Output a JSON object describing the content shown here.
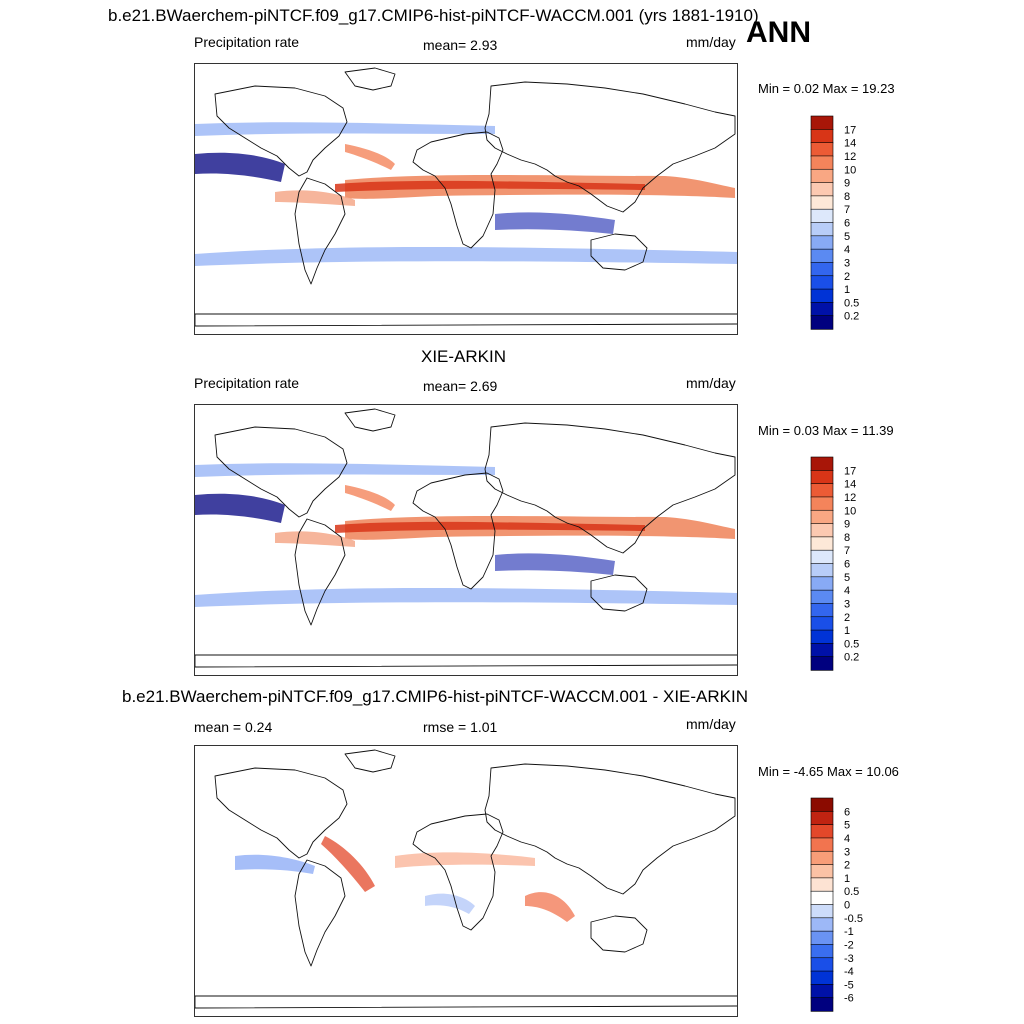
{
  "ann_label": "ANN",
  "panels": [
    {
      "id": "model",
      "title": "b.e21.BWaerchem-piNTCF.f09_g17.CMIP6-hist-piNTCF-WACCM.001 (yrs 1881-1910)",
      "left_label": "Precipitation rate",
      "center_label": "mean=   2.93",
      "units": "mm/day",
      "minmax": "Min =   0.02 Max =  19.23",
      "colorbar": [
        "17",
        "14",
        "12",
        "10",
        "9",
        "8",
        "7",
        "6",
        "5",
        "4",
        "3",
        "2",
        "1",
        "0.5",
        "0.2"
      ]
    },
    {
      "id": "obs",
      "title": "XIE-ARKIN",
      "left_label": "Precipitation rate",
      "center_label": "mean=   2.69",
      "units": "mm/day",
      "minmax": "Min =   0.03 Max =  11.39",
      "colorbar": [
        "17",
        "14",
        "12",
        "10",
        "9",
        "8",
        "7",
        "6",
        "5",
        "4",
        "3",
        "2",
        "1",
        "0.5",
        "0.2"
      ]
    },
    {
      "id": "diff",
      "title": "b.e21.BWaerchem-piNTCF.f09_g17.CMIP6-hist-piNTCF-WACCM.001 - XIE-ARKIN",
      "left_label": "mean =   0.24",
      "center_label": "rmse =   1.01",
      "units": "mm/day",
      "minmax": "Min =  -4.65 Max =  10.06",
      "colorbar": [
        "6",
        "5",
        "4",
        "3",
        "2",
        "1",
        "0.5",
        "0",
        "-0.5",
        "-1",
        "-2",
        "-3",
        "-4",
        "-5",
        "-6"
      ]
    }
  ],
  "colors": {
    "precip_scale": [
      "#00007f",
      "#0011a8",
      "#0033d6",
      "#1a4fe8",
      "#3366ee",
      "#5b8af2",
      "#88aaf5",
      "#b8cdf8",
      "#dde8fb",
      "#fde8d8",
      "#fcc9b1",
      "#f9a783",
      "#f4845b",
      "#ec5b35",
      "#d83517",
      "#a81608"
    ],
    "diff_scale": [
      "#00007f",
      "#0011a8",
      "#0033d6",
      "#1a4fe8",
      "#3a6eef",
      "#6a93f3",
      "#9db8f7",
      "#cddcfa",
      "#ffffff",
      "#fde3d3",
      "#fbc2a5",
      "#f89d78",
      "#f2744f",
      "#e3482a",
      "#c02311",
      "#8b0b00"
    ]
  },
  "chart_data": [
    {
      "type": "heatmap",
      "title": "b.e21.BWaerchem-piNTCF.f09_g17.CMIP6-hist-piNTCF-WACCM.001 (yrs 1881-1910)",
      "variable": "Precipitation rate",
      "units": "mm/day",
      "mean": 2.93,
      "min": 0.02,
      "max": 19.23,
      "contour_levels": [
        0.2,
        0.5,
        1,
        2,
        3,
        4,
        5,
        6,
        7,
        8,
        9,
        10,
        12,
        14,
        17
      ]
    },
    {
      "type": "heatmap",
      "title": "XIE-ARKIN",
      "variable": "Precipitation rate",
      "units": "mm/day",
      "mean": 2.69,
      "min": 0.03,
      "max": 11.39,
      "contour_levels": [
        0.2,
        0.5,
        1,
        2,
        3,
        4,
        5,
        6,
        7,
        8,
        9,
        10,
        12,
        14,
        17
      ]
    },
    {
      "type": "heatmap",
      "title": "b.e21.BWaerchem-piNTCF.f09_g17.CMIP6-hist-piNTCF-WACCM.001 - XIE-ARKIN",
      "units": "mm/day",
      "mean": 0.24,
      "rmse": 1.01,
      "min": -4.65,
      "max": 10.06,
      "contour_levels": [
        -6,
        -5,
        -4,
        -3,
        -2,
        -1,
        -0.5,
        0,
        0.5,
        1,
        2,
        3,
        4,
        5,
        6
      ]
    }
  ]
}
